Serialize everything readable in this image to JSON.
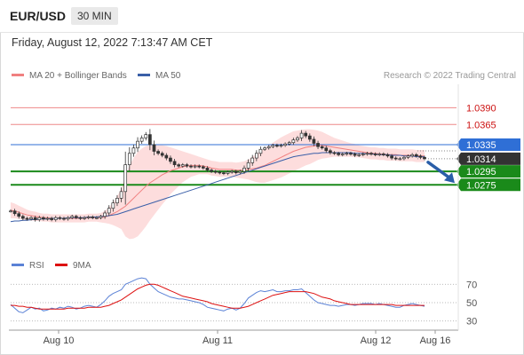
{
  "header": {
    "pair": "EUR/USD",
    "timeframe": "30 MIN",
    "datetime": "Friday, August 12, 2022 7:13:47 AM CET"
  },
  "legend": {
    "ma20_label": "MA 20 + Bollinger Bands",
    "ma50_label": "MA 50",
    "copyright": "Research © 2022 Trading Central",
    "rsi_label": "RSI",
    "rsi_ma_label": "9MA"
  },
  "colors": {
    "ma20": "#f08080",
    "bollinger_fill": "#fdd9d9",
    "ma50": "#3a5fa8",
    "resistance": "#ee8888",
    "pivot": "#2f6fd6",
    "support": "#1a8a1a",
    "current": "#333333",
    "rsi": "#5b82d6",
    "rsi_ma": "#dd1111",
    "arrow": "#2a5ea8"
  },
  "chart_data": [
    {
      "type": "line",
      "title": "EUR/USD 30 MIN",
      "x_ticks": [
        "Aug 10",
        "Aug 11",
        "Aug 12",
        "Aug 16"
      ],
      "ylim": [
        1.018,
        1.0425
      ],
      "levels": [
        {
          "label": "1.0390",
          "value": 1.039,
          "kind": "resistance"
        },
        {
          "label": "1.0365",
          "value": 1.0365,
          "kind": "resistance"
        },
        {
          "label": "1.0335",
          "value": 1.0335,
          "kind": "pivot"
        },
        {
          "label": "1.0314",
          "value": 1.0314,
          "kind": "current"
        },
        {
          "label": "1.0295",
          "value": 1.0295,
          "kind": "support"
        },
        {
          "label": "1.0275",
          "value": 1.0275,
          "kind": "support"
        }
      ],
      "series": [
        {
          "name": "EUR/USD",
          "values": [
            1.0236,
            1.0232,
            1.0228,
            1.0225,
            1.0224,
            1.0226,
            1.0223,
            1.0226,
            1.0224,
            1.0225,
            1.0223,
            1.0226,
            1.0225,
            1.0224,
            1.0226,
            1.0228,
            1.0226,
            1.0225,
            1.0226,
            1.0227,
            1.0226,
            1.0226,
            1.0228,
            1.0233,
            1.024,
            1.0248,
            1.0255,
            1.0265,
            1.0305,
            1.0322,
            1.033,
            1.034,
            1.0345,
            1.035,
            1.0335,
            1.0325,
            1.0322,
            1.0319,
            1.0315,
            1.031,
            1.0305,
            1.0303,
            1.0305,
            1.0303,
            1.0302,
            1.0303,
            1.0302,
            1.03,
            1.0297,
            1.0295,
            1.0294,
            1.0293,
            1.0292,
            1.0294,
            1.0295,
            1.0293,
            1.0295,
            1.03,
            1.0308,
            1.0315,
            1.0322,
            1.0328,
            1.033,
            1.0332,
            1.0334,
            1.0333,
            1.0334,
            1.0336,
            1.0338,
            1.0342,
            1.0345,
            1.0352,
            1.0348,
            1.0343,
            1.0337,
            1.0332,
            1.033,
            1.0326,
            1.0323,
            1.0322,
            1.032,
            1.0321,
            1.0322,
            1.0321,
            1.0319,
            1.032,
            1.0321,
            1.0322,
            1.0321,
            1.032,
            1.0321,
            1.032,
            1.0318,
            1.0315,
            1.0314,
            1.0314,
            1.0316,
            1.0318,
            1.032,
            1.0318,
            1.0316,
            1.0314
          ]
        },
        {
          "name": "MA 20",
          "values": [
            1.0237,
            1.0236,
            1.0234,
            1.0232,
            1.023,
            1.0229,
            1.0228,
            1.0227,
            1.0226,
            1.0226,
            1.0225,
            1.0225,
            1.0225,
            1.0225,
            1.0225,
            1.0225,
            1.0225,
            1.0225,
            1.0225,
            1.0226,
            1.0226,
            1.0226,
            1.0226,
            1.0227,
            1.0229,
            1.0232,
            1.0235,
            1.0239,
            1.0243,
            1.0249,
            1.0255,
            1.0261,
            1.0267,
            1.0273,
            1.0278,
            1.0282,
            1.0286,
            1.029,
            1.0293,
            1.0296,
            1.0298,
            1.03,
            1.0302,
            1.0303,
            1.0304,
            1.0304,
            1.0304,
            1.0303,
            1.0302,
            1.03,
            1.0299,
            1.0298,
            1.0298,
            1.0298,
            1.0298,
            1.0297,
            1.0297,
            1.0297,
            1.0298,
            1.0299,
            1.03,
            1.0302,
            1.0304,
            1.0307,
            1.031,
            1.0313,
            1.0316,
            1.0319,
            1.0322,
            1.0325,
            1.0327,
            1.0329,
            1.0331,
            1.0332,
            1.0333,
            1.0334,
            1.0334,
            1.0333,
            1.0332,
            1.0331,
            1.033,
            1.0329,
            1.0328,
            1.0327,
            1.0326,
            1.0325,
            1.0324,
            1.0323,
            1.0322,
            1.0322,
            1.0321,
            1.0321,
            1.032,
            1.032,
            1.032,
            1.0319,
            1.0319,
            1.0319,
            1.0319,
            1.0318,
            1.0318,
            1.0318
          ]
        },
        {
          "name": "MA 50",
          "values": [
            1.022,
            1.0221,
            1.0221,
            1.0222,
            1.0222,
            1.0223,
            1.0223,
            1.0224,
            1.0224,
            1.0224,
            1.0225,
            1.0225,
            1.0225,
            1.0225,
            1.0226,
            1.0226,
            1.0226,
            1.0226,
            1.0226,
            1.0227,
            1.0227,
            1.0227,
            1.0228,
            1.0228,
            1.0229,
            1.023,
            1.0231,
            1.0233,
            1.0235,
            1.0237,
            1.0239,
            1.0241,
            1.0243,
            1.0245,
            1.0247,
            1.0249,
            1.0251,
            1.0253,
            1.0255,
            1.0257,
            1.0259,
            1.0261,
            1.0263,
            1.0265,
            1.0267,
            1.0269,
            1.0271,
            1.0273,
            1.0275,
            1.0277,
            1.0279,
            1.0281,
            1.0283,
            1.0285,
            1.0287,
            1.0289,
            1.0291,
            1.0293,
            1.0295,
            1.0297,
            1.0299,
            1.0301,
            1.0303,
            1.0305,
            1.0307,
            1.0309,
            1.0311,
            1.0313,
            1.0315,
            1.0317,
            1.0318,
            1.0319,
            1.032,
            1.0321,
            1.0322,
            1.0322,
            1.0323,
            1.0323,
            1.0323,
            1.0323,
            1.0323,
            1.0323,
            1.0323,
            1.0323,
            1.0322,
            1.0322,
            1.0322,
            1.0321,
            1.0321,
            1.0321,
            1.032,
            1.032,
            1.032,
            1.0319,
            1.0319,
            1.0319,
            1.0318,
            1.0318,
            1.0318,
            1.0317,
            1.0317,
            1.0317
          ]
        }
      ],
      "bollinger_width": [
        0.0012,
        0.0011,
        0.001,
        0.0009,
        0.0008,
        0.0007,
        0.0007,
        0.0006,
        0.0006,
        0.0006,
        0.0006,
        0.0006,
        0.0006,
        0.0006,
        0.0006,
        0.0006,
        0.0006,
        0.0006,
        0.0006,
        0.0006,
        0.0006,
        0.0006,
        0.0007,
        0.0009,
        0.0012,
        0.0017,
        0.0023,
        0.003,
        0.0045,
        0.0055,
        0.006,
        0.0063,
        0.0062,
        0.006,
        0.0056,
        0.0052,
        0.0048,
        0.0044,
        0.004,
        0.0035,
        0.0031,
        0.0027,
        0.0023,
        0.002,
        0.0017,
        0.0015,
        0.0013,
        0.0012,
        0.0011,
        0.0011,
        0.0011,
        0.0011,
        0.0011,
        0.0011,
        0.0011,
        0.0011,
        0.0012,
        0.0013,
        0.0015,
        0.0018,
        0.0021,
        0.0024,
        0.0026,
        0.0027,
        0.0028,
        0.0029,
        0.003,
        0.003,
        0.003,
        0.003,
        0.0029,
        0.0028,
        0.0027,
        0.0026,
        0.0024,
        0.0022,
        0.002,
        0.0018,
        0.0016,
        0.0014,
        0.0013,
        0.0012,
        0.0011,
        0.001,
        0.001,
        0.0009,
        0.0009,
        0.0009,
        0.0009,
        0.0009,
        0.0009,
        0.0009,
        0.0009,
        0.0009,
        0.0009,
        0.0009,
        0.0009,
        0.0009,
        0.0009,
        0.0009,
        0.0009,
        0.0009
      ],
      "forecast": {
        "from": 1.0314,
        "to": 1.0275
      }
    },
    {
      "type": "line",
      "title": "RSI",
      "yticks": [
        70,
        50,
        30
      ],
      "ylim": [
        20,
        80
      ],
      "x_ticks": [
        "Aug 10",
        "Aug 11",
        "Aug 12",
        "Aug 16"
      ],
      "series": [
        {
          "name": "RSI",
          "values": [
            48,
            44,
            40,
            39,
            42,
            45,
            43,
            44,
            41,
            42,
            44,
            43,
            45,
            44,
            46,
            45,
            43,
            44,
            46,
            47,
            46,
            45,
            48,
            52,
            57,
            60,
            62,
            64,
            70,
            72,
            74,
            76,
            77,
            76,
            70,
            66,
            62,
            60,
            58,
            56,
            55,
            54,
            54,
            53,
            52,
            51,
            50,
            48,
            45,
            44,
            43,
            42,
            41,
            43,
            44,
            42,
            44,
            49,
            55,
            58,
            61,
            63,
            62,
            63,
            64,
            62,
            62,
            63,
            63,
            64,
            64,
            65,
            61,
            57,
            53,
            50,
            49,
            48,
            47,
            47,
            46,
            47,
            48,
            48,
            47,
            48,
            49,
            49,
            49,
            48,
            49,
            48,
            47,
            46,
            45,
            45,
            47,
            48,
            49,
            48,
            47,
            46
          ]
        },
        {
          "name": "9MA",
          "values": [
            47,
            47,
            46,
            46,
            45,
            45,
            44,
            43,
            43,
            43,
            43,
            43,
            43,
            43,
            44,
            44,
            44,
            44,
            44,
            45,
            45,
            45,
            45,
            46,
            47,
            49,
            51,
            53,
            56,
            59,
            62,
            65,
            67,
            69,
            70,
            70,
            69,
            67,
            65,
            63,
            61,
            59,
            57,
            56,
            55,
            54,
            53,
            52,
            51,
            49,
            48,
            47,
            46,
            45,
            44,
            44,
            44,
            45,
            46,
            48,
            50,
            52,
            54,
            56,
            58,
            59,
            60,
            61,
            62,
            62,
            62,
            62,
            62,
            61,
            60,
            58,
            56,
            55,
            54,
            52,
            51,
            50,
            49,
            48,
            48,
            48,
            48,
            48,
            48,
            48,
            48,
            48,
            48,
            48,
            47,
            47,
            47,
            47,
            47,
            47,
            47,
            47
          ]
        }
      ]
    }
  ]
}
